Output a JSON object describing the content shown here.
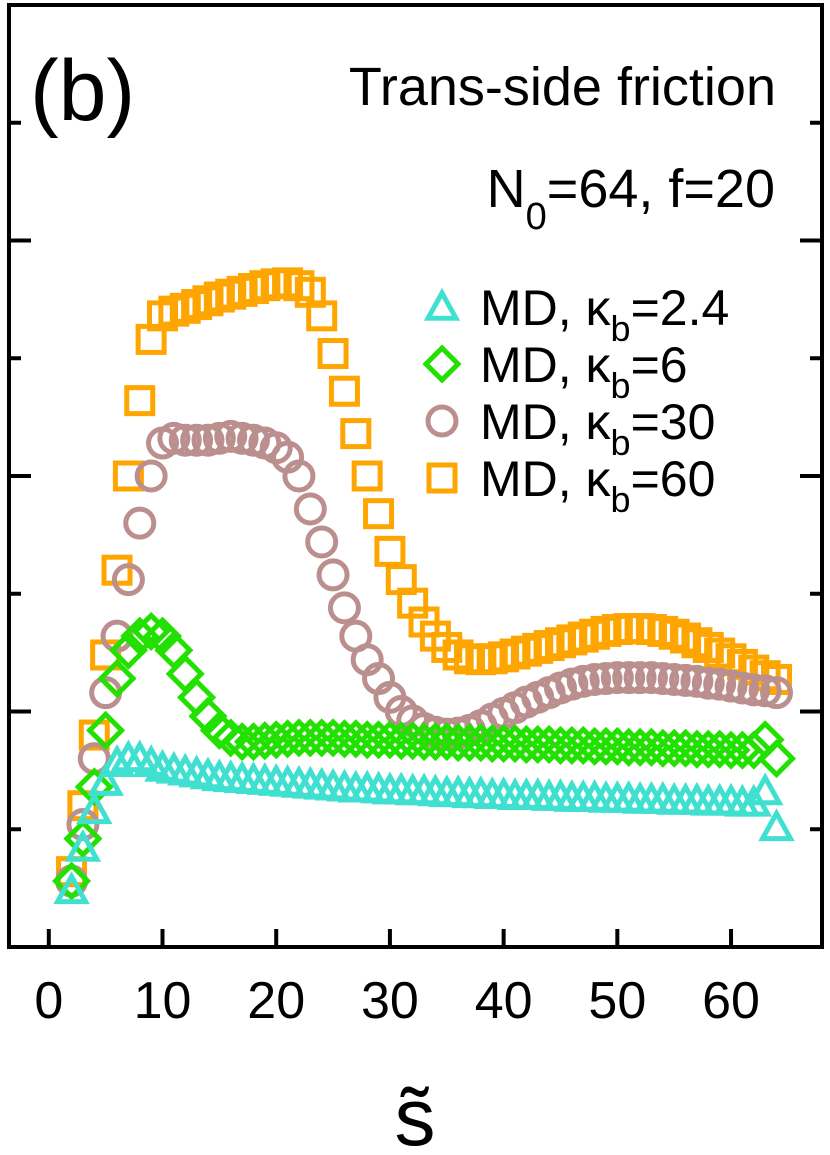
{
  "chart_data": {
    "type": "scatter",
    "panel_label": "(b)",
    "title": "Trans-side friction",
    "subtitle_main": "N",
    "subtitle_sub": "0",
    "subtitle_rest": "=64, f=20",
    "xlabel": "s̃",
    "ylabel": "",
    "xlim": [
      -3.5,
      68
    ],
    "ylim": [
      0,
      1
    ],
    "x_ticks": [
      0,
      10,
      20,
      30,
      40,
      50,
      60
    ],
    "x_tick_labels": [
      "0",
      "10",
      "20",
      "30",
      "40",
      "50",
      "60"
    ],
    "y_tick_labels_shown": false,
    "grid": false,
    "legend_position": "top-right",
    "series": [
      {
        "name": "MD, κb=2.4",
        "legend_prefix": "MD, κ",
        "legend_sub": "b",
        "legend_suffix": "=2.4",
        "marker": "triangle",
        "color": "#40E0D0",
        "x": [
          2,
          3,
          4,
          5,
          6,
          7,
          8,
          9,
          10,
          11,
          12,
          13,
          14,
          15,
          16,
          17,
          18,
          19,
          20,
          21,
          22,
          23,
          24,
          25,
          26,
          27,
          28,
          29,
          30,
          31,
          32,
          33,
          34,
          35,
          36,
          37,
          38,
          39,
          40,
          41,
          42,
          43,
          44,
          45,
          46,
          47,
          48,
          49,
          50,
          51,
          52,
          53,
          54,
          55,
          56,
          57,
          58,
          59,
          60,
          61,
          62,
          63,
          64
        ],
        "y": [
          0.06,
          0.105,
          0.145,
          0.175,
          0.195,
          0.2,
          0.2,
          0.195,
          0.19,
          0.188,
          0.186,
          0.184,
          0.182,
          0.18,
          0.179,
          0.178,
          0.177,
          0.176,
          0.175,
          0.174,
          0.173,
          0.172,
          0.171,
          0.17,
          0.169,
          0.168,
          0.168,
          0.167,
          0.166,
          0.166,
          0.165,
          0.165,
          0.164,
          0.163,
          0.163,
          0.162,
          0.162,
          0.161,
          0.161,
          0.16,
          0.16,
          0.16,
          0.159,
          0.159,
          0.158,
          0.158,
          0.158,
          0.157,
          0.157,
          0.157,
          0.156,
          0.156,
          0.156,
          0.155,
          0.155,
          0.155,
          0.154,
          0.154,
          0.154,
          0.153,
          0.153,
          0.165,
          0.127
        ]
      },
      {
        "name": "MD, κb=6",
        "legend_prefix": "MD, κ",
        "legend_sub": "b",
        "legend_suffix": "=6",
        "marker": "diamond",
        "color": "#22E000",
        "x": [
          2,
          3,
          4,
          5,
          6,
          7,
          8,
          9,
          10,
          11,
          12,
          13,
          14,
          15,
          16,
          17,
          18,
          19,
          20,
          21,
          22,
          23,
          24,
          25,
          26,
          27,
          28,
          29,
          30,
          31,
          32,
          33,
          34,
          35,
          36,
          37,
          38,
          39,
          40,
          41,
          42,
          43,
          44,
          45,
          46,
          47,
          48,
          49,
          50,
          51,
          52,
          53,
          54,
          55,
          56,
          57,
          58,
          59,
          60,
          61,
          62,
          63,
          64
        ],
        "y": [
          0.07,
          0.115,
          0.17,
          0.23,
          0.285,
          0.315,
          0.33,
          0.335,
          0.33,
          0.315,
          0.29,
          0.265,
          0.245,
          0.23,
          0.222,
          0.218,
          0.218,
          0.219,
          0.22,
          0.221,
          0.222,
          0.222,
          0.222,
          0.222,
          0.221,
          0.221,
          0.22,
          0.22,
          0.22,
          0.219,
          0.219,
          0.218,
          0.218,
          0.218,
          0.217,
          0.217,
          0.217,
          0.216,
          0.216,
          0.216,
          0.215,
          0.215,
          0.215,
          0.214,
          0.214,
          0.214,
          0.213,
          0.213,
          0.213,
          0.212,
          0.212,
          0.212,
          0.211,
          0.211,
          0.211,
          0.21,
          0.21,
          0.21,
          0.209,
          0.209,
          0.209,
          0.22,
          0.2
        ]
      },
      {
        "name": "MD, κb=30",
        "legend_prefix": "MD, κ",
        "legend_sub": "b",
        "legend_suffix": "=30",
        "marker": "circle",
        "color": "#BC8F8F",
        "x": [
          2,
          3,
          4,
          5,
          6,
          7,
          8,
          9,
          10,
          11,
          12,
          13,
          14,
          15,
          16,
          17,
          18,
          19,
          20,
          21,
          22,
          23,
          24,
          25,
          26,
          27,
          28,
          29,
          30,
          31,
          32,
          33,
          34,
          35,
          36,
          37,
          38,
          39,
          40,
          41,
          42,
          43,
          44,
          45,
          46,
          47,
          48,
          49,
          50,
          51,
          52,
          53,
          54,
          55,
          56,
          57,
          58,
          59,
          60,
          61,
          62,
          63,
          64
        ],
        "y": [
          0.07,
          0.13,
          0.2,
          0.27,
          0.33,
          0.39,
          0.45,
          0.5,
          0.535,
          0.54,
          0.538,
          0.538,
          0.538,
          0.54,
          0.542,
          0.54,
          0.538,
          0.535,
          0.53,
          0.52,
          0.5,
          0.465,
          0.43,
          0.395,
          0.36,
          0.33,
          0.305,
          0.285,
          0.265,
          0.25,
          0.24,
          0.232,
          0.228,
          0.226,
          0.227,
          0.23,
          0.235,
          0.242,
          0.248,
          0.254,
          0.26,
          0.265,
          0.27,
          0.275,
          0.279,
          0.282,
          0.284,
          0.285,
          0.286,
          0.286,
          0.286,
          0.286,
          0.285,
          0.284,
          0.283,
          0.282,
          0.28,
          0.279,
          0.277,
          0.275,
          0.273,
          0.272,
          0.27
        ]
      },
      {
        "name": "MD, κb=60",
        "legend_prefix": "MD, κ",
        "legend_sub": "b",
        "legend_suffix": "=60",
        "marker": "square",
        "color": "#FFA500",
        "x": [
          2,
          3,
          4,
          5,
          6,
          7,
          8,
          9,
          10,
          11,
          12,
          13,
          14,
          15,
          16,
          17,
          18,
          19,
          20,
          21,
          22,
          23,
          24,
          25,
          26,
          27,
          28,
          29,
          30,
          31,
          32,
          33,
          34,
          35,
          36,
          37,
          38,
          39,
          40,
          41,
          42,
          43,
          44,
          45,
          46,
          47,
          48,
          49,
          50,
          51,
          52,
          53,
          54,
          55,
          56,
          57,
          58,
          59,
          60,
          61,
          62,
          63,
          64
        ],
        "y": [
          0.08,
          0.15,
          0.225,
          0.31,
          0.4,
          0.5,
          0.58,
          0.645,
          0.67,
          0.675,
          0.678,
          0.682,
          0.686,
          0.69,
          0.693,
          0.696,
          0.699,
          0.702,
          0.704,
          0.705,
          0.702,
          0.695,
          0.67,
          0.63,
          0.59,
          0.545,
          0.5,
          0.46,
          0.42,
          0.39,
          0.365,
          0.345,
          0.33,
          0.318,
          0.31,
          0.306,
          0.305,
          0.306,
          0.308,
          0.311,
          0.314,
          0.317,
          0.32,
          0.323,
          0.326,
          0.329,
          0.332,
          0.335,
          0.337,
          0.338,
          0.338,
          0.337,
          0.335,
          0.332,
          0.328,
          0.323,
          0.318,
          0.312,
          0.306,
          0.3,
          0.294,
          0.288,
          0.284
        ]
      }
    ]
  }
}
